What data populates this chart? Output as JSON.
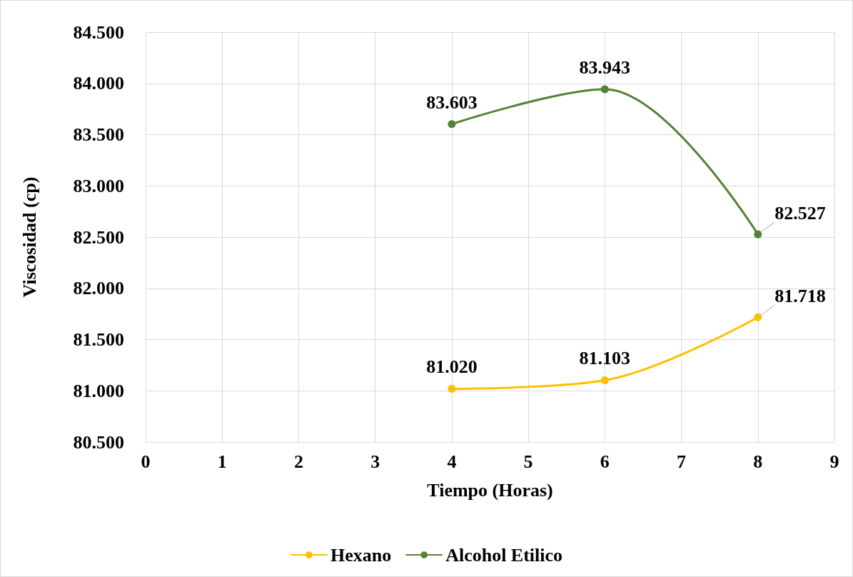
{
  "chart_data": {
    "type": "line",
    "xlabel": "Tiempo (Horas)",
    "ylabel": "Viscosidad (cp)",
    "xlim": [
      0,
      9
    ],
    "xticks": [
      0,
      1,
      2,
      3,
      4,
      5,
      6,
      7,
      8,
      9
    ],
    "ylim": [
      80500,
      84500
    ],
    "yticks": [
      {
        "value": 80500,
        "label": "80.500"
      },
      {
        "value": 81000,
        "label": "81.000"
      },
      {
        "value": 81500,
        "label": "81.500"
      },
      {
        "value": 82000,
        "label": "82.000"
      },
      {
        "value": 82500,
        "label": "82.500"
      },
      {
        "value": 83000,
        "label": "83.000"
      },
      {
        "value": 83500,
        "label": "83.500"
      },
      {
        "value": 84000,
        "label": "84.000"
      },
      {
        "value": 84500,
        "label": "84.500"
      }
    ],
    "grid": true,
    "legend": "bottom",
    "marker": "circle",
    "line_style": "solid",
    "series": [
      {
        "name": "Hexano",
        "color": "#ffc000",
        "x": [
          4,
          6,
          8
        ],
        "values": [
          81020,
          81103,
          81718
        ],
        "value_labels": [
          "81.020",
          "81.103",
          "81.718"
        ]
      },
      {
        "name": "Alcohol Etilico",
        "color": "#548235",
        "x": [
          4,
          6,
          8
        ],
        "values": [
          83603,
          83943,
          82527
        ],
        "value_labels": [
          "83.603",
          "83.943",
          "82.527"
        ]
      }
    ]
  }
}
